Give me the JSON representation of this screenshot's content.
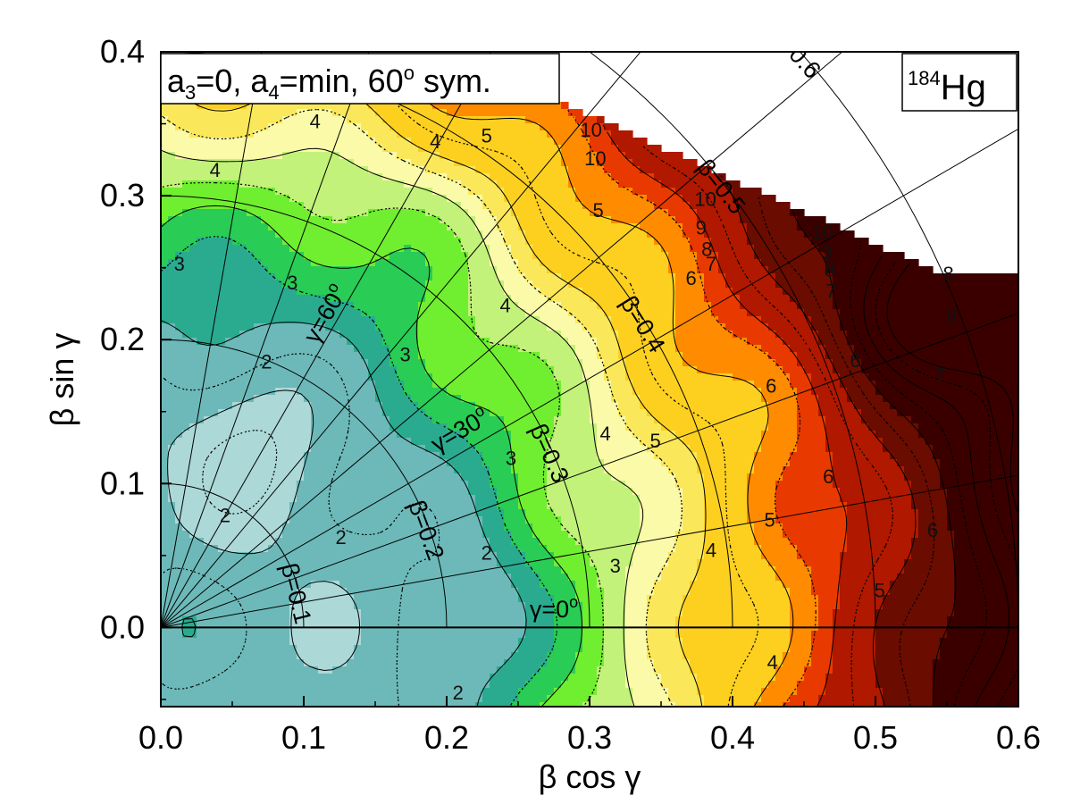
{
  "chart_data": {
    "type": "heatmap",
    "title": "",
    "xlabel": "β cos γ",
    "ylabel": "β sin γ",
    "xlim": [
      0.0,
      0.6
    ],
    "ylim": [
      -0.055,
      0.4
    ],
    "x_ticks": [
      "0.0",
      "0.1",
      "0.2",
      "0.3",
      "0.4",
      "0.5",
      "0.6"
    ],
    "y_ticks": [
      "0.0",
      "0.1",
      "0.2",
      "0.3",
      "0.4"
    ],
    "annotation_left": {
      "a3": "a",
      "a3_sub": "3",
      "a3_rest": "=0, a",
      "a4_sub": "4",
      "a4_rest": "=min, 60",
      "deg_sup": "o",
      "tail": " sym."
    },
    "nucleus": {
      "mass": "184",
      "element": "Hg"
    },
    "beta_arcs": [
      0.1,
      0.2,
      0.3,
      0.4,
      0.5,
      0.6
    ],
    "beta_labels": [
      {
        "text": "β=0.1",
        "beta": 0.1
      },
      {
        "text": "β=0.2",
        "beta": 0.2
      },
      {
        "text": "β=0.3",
        "beta": 0.3
      },
      {
        "text": "β=0.4",
        "beta": 0.4
      },
      {
        "text": "β=0.5",
        "beta": 0.5
      },
      {
        "text": "β=0.6",
        "beta": 0.6
      }
    ],
    "gamma_lines_deg": [
      0,
      10,
      20,
      30,
      40,
      50,
      60,
      70,
      80
    ],
    "gamma_labels": [
      {
        "text": "γ=0",
        "sup": "o",
        "gamma": 0
      },
      {
        "text": "γ=30",
        "sup": "o",
        "gamma": 30
      },
      {
        "text": "γ=60",
        "sup": "o",
        "gamma": 60
      }
    ],
    "energy_levels": [
      2,
      3,
      4,
      5,
      6,
      7,
      8,
      9,
      10
    ],
    "colors": [
      "#add8d8",
      "#6db9b9",
      "#2aab90",
      "#29cc55",
      "#70ee30",
      "#c2f27a",
      "#fafaa8",
      "#fbe85a",
      "#fdd020",
      "#ff8c00",
      "#e83a00",
      "#b01800",
      "#6a0c00",
      "#3a0000"
    ],
    "contour_labels": [
      {
        "text": "4",
        "x": 0.108,
        "y": 0.352
      },
      {
        "text": "4",
        "x": 0.192,
        "y": 0.338
      },
      {
        "text": "5",
        "x": 0.228,
        "y": 0.342
      },
      {
        "text": "4",
        "x": 0.038,
        "y": 0.318
      },
      {
        "text": "10",
        "x": 0.301,
        "y": 0.346
      },
      {
        "text": "10",
        "x": 0.304,
        "y": 0.326
      },
      {
        "text": "5",
        "x": 0.306,
        "y": 0.29
      },
      {
        "text": "10",
        "x": 0.381,
        "y": 0.298
      },
      {
        "text": "9",
        "x": 0.378,
        "y": 0.278
      },
      {
        "text": "8",
        "x": 0.382,
        "y": 0.263
      },
      {
        "text": "7",
        "x": 0.385,
        "y": 0.253
      },
      {
        "text": "10",
        "x": 0.463,
        "y": 0.275
      },
      {
        "text": "9",
        "x": 0.466,
        "y": 0.261
      },
      {
        "text": "8",
        "x": 0.468,
        "y": 0.249
      },
      {
        "text": "7",
        "x": 0.469,
        "y": 0.234
      },
      {
        "text": "6",
        "x": 0.371,
        "y": 0.243
      },
      {
        "text": "8",
        "x": 0.551,
        "y": 0.246
      },
      {
        "text": "8",
        "x": 0.553,
        "y": 0.217
      },
      {
        "text": "3",
        "x": 0.013,
        "y": 0.253
      },
      {
        "text": "3",
        "x": 0.092,
        "y": 0.24
      },
      {
        "text": "4",
        "x": 0.241,
        "y": 0.224
      },
      {
        "text": "2",
        "x": 0.074,
        "y": 0.185
      },
      {
        "text": "3",
        "x": 0.171,
        "y": 0.19
      },
      {
        "text": "6",
        "x": 0.486,
        "y": 0.186
      },
      {
        "text": "6",
        "x": 0.427,
        "y": 0.168
      },
      {
        "text": "7",
        "x": 0.545,
        "y": 0.176
      },
      {
        "text": "4",
        "x": 0.311,
        "y": 0.135
      },
      {
        "text": "5",
        "x": 0.346,
        "y": 0.13
      },
      {
        "text": "3",
        "x": 0.245,
        "y": 0.118
      },
      {
        "text": "6",
        "x": 0.467,
        "y": 0.105
      },
      {
        "text": "2",
        "x": 0.045,
        "y": 0.078
      },
      {
        "text": "2",
        "x": 0.126,
        "y": 0.063
      },
      {
        "text": "2",
        "x": 0.228,
        "y": 0.052
      },
      {
        "text": "5",
        "x": 0.426,
        "y": 0.075
      },
      {
        "text": "6",
        "x": 0.54,
        "y": 0.068
      },
      {
        "text": "4",
        "x": 0.385,
        "y": 0.054
      },
      {
        "text": "3",
        "x": 0.318,
        "y": 0.043
      },
      {
        "text": "5",
        "x": 0.503,
        "y": 0.026
      },
      {
        "text": "4",
        "x": 0.428,
        "y": -0.024
      },
      {
        "text": "2",
        "x": 0.208,
        "y": -0.045
      }
    ]
  }
}
